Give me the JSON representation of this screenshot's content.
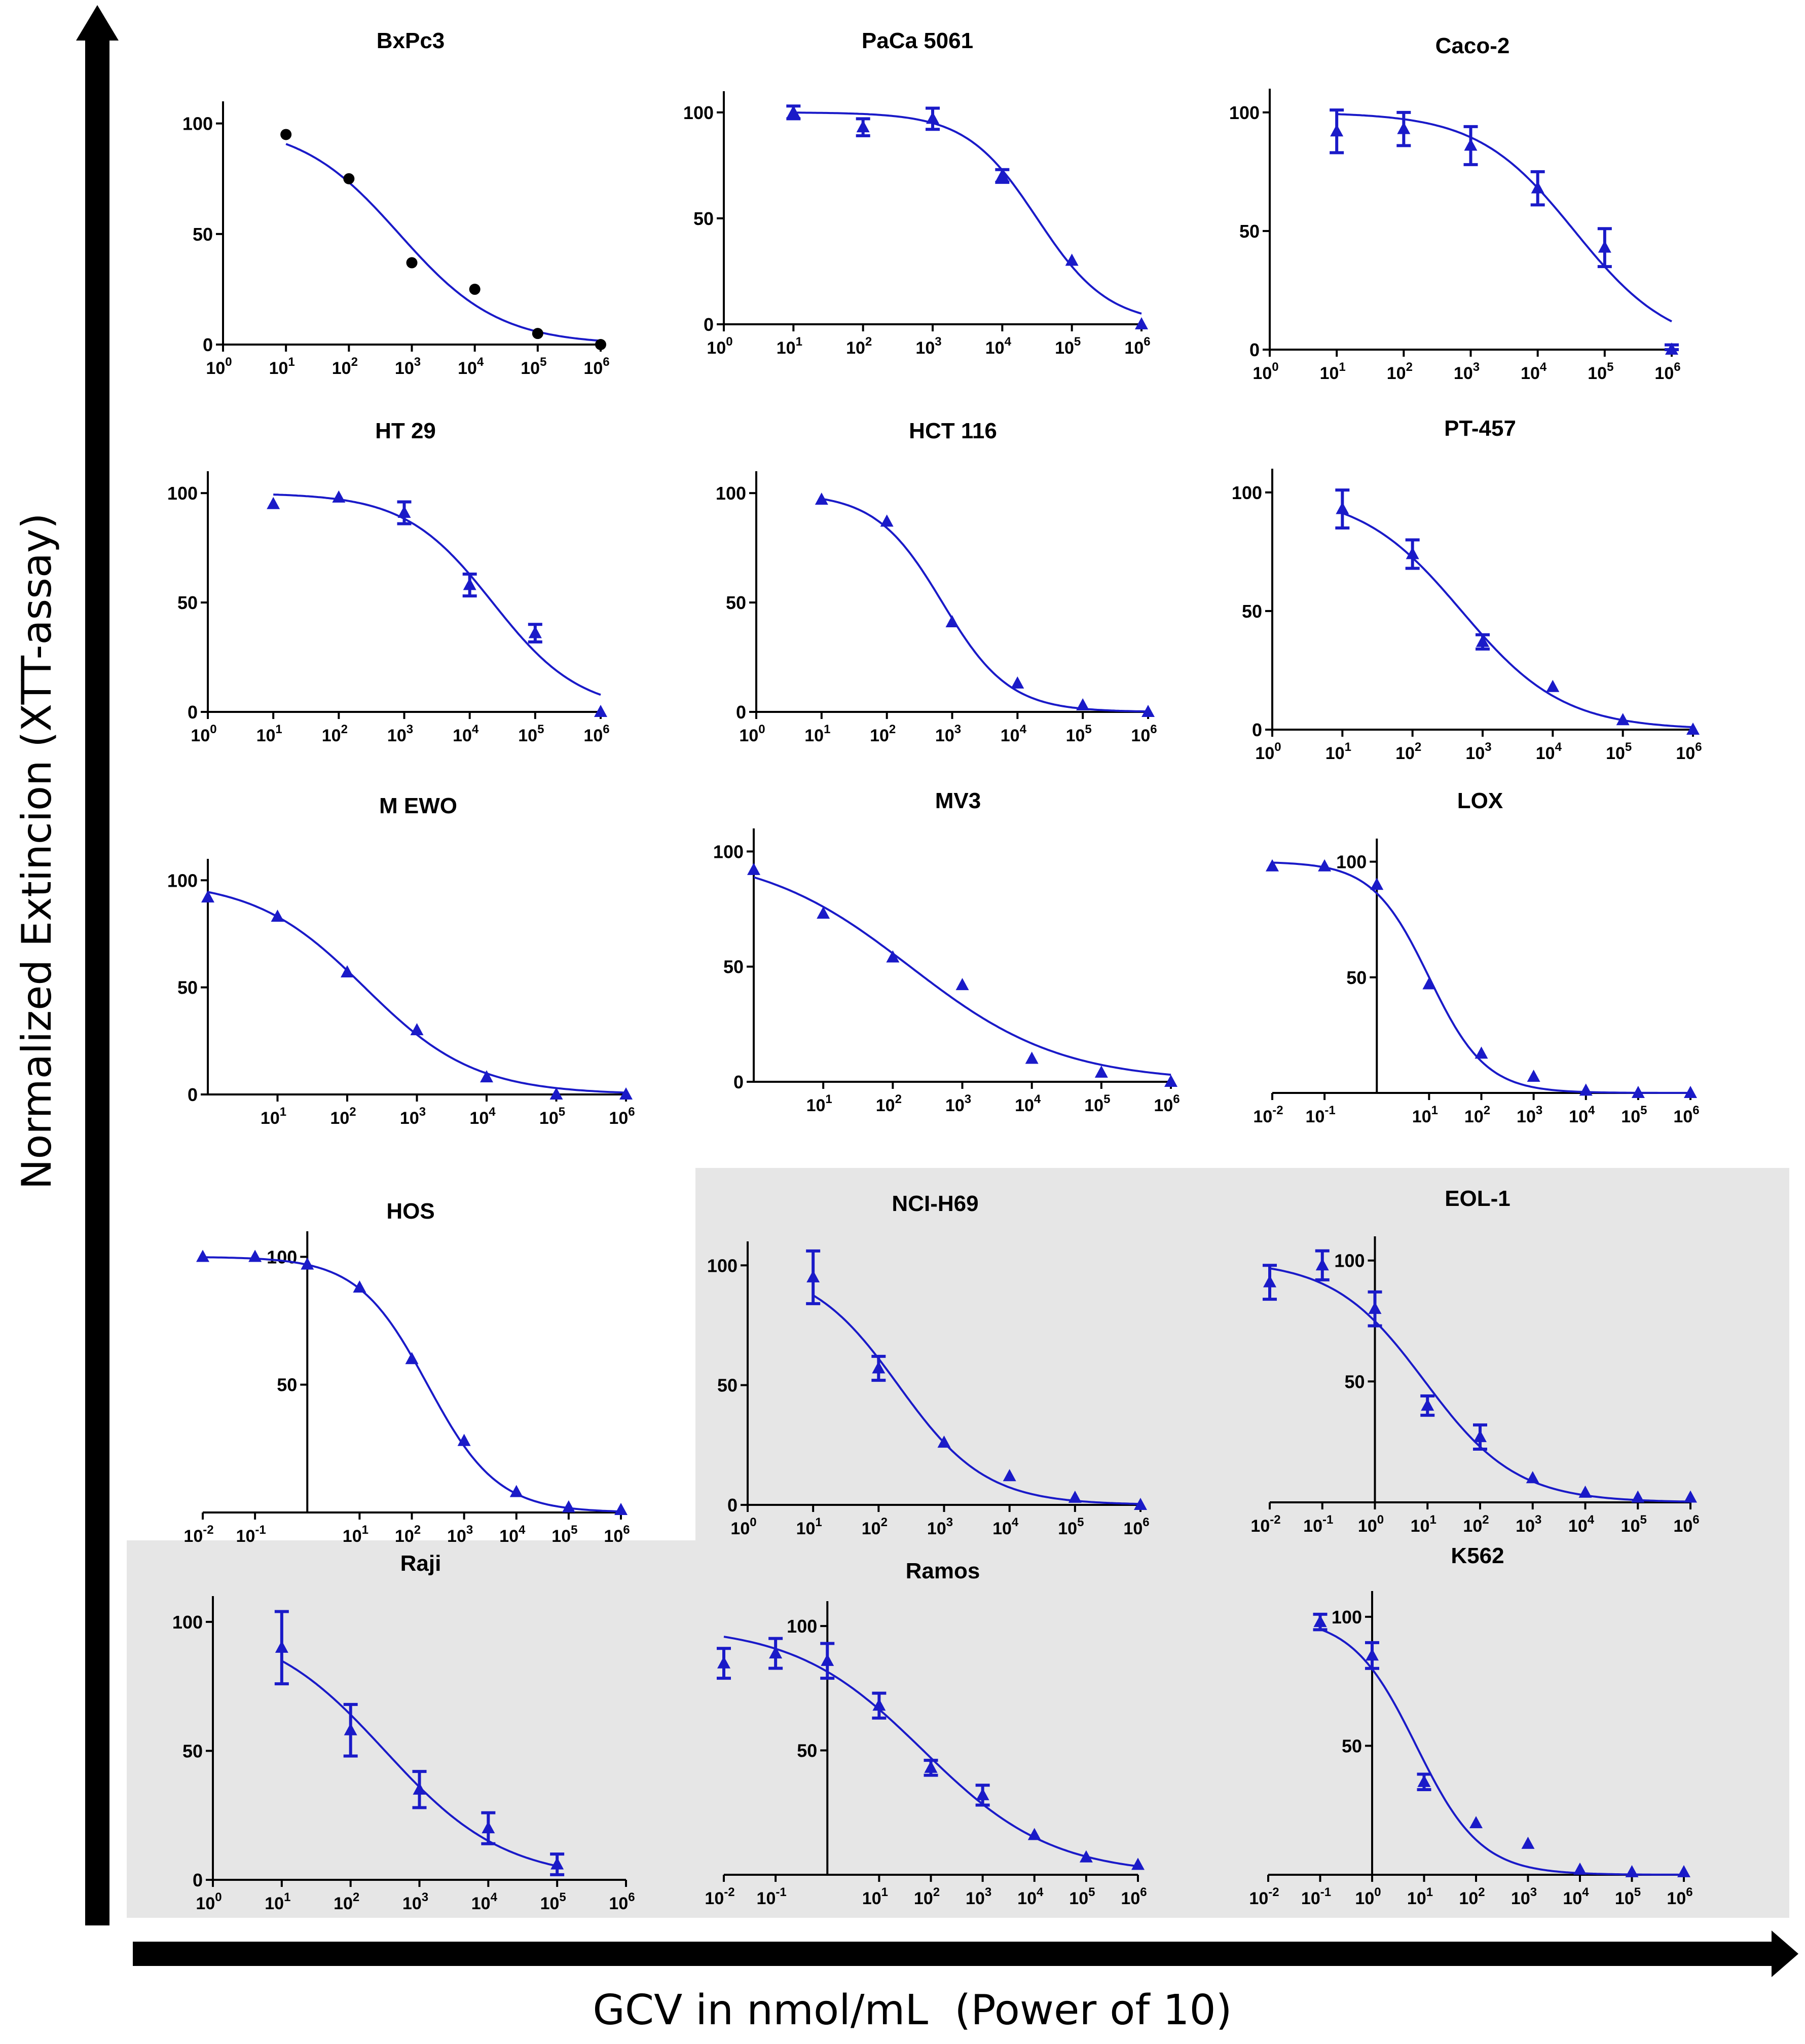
{
  "figure": {
    "ylabel": "Normalized Extincion (XTT-assay)",
    "xlabel": "GCV in nmol/mL  (Power of 10)",
    "colors": {
      "curve": "#1a1ac8",
      "black_marker": "#000000",
      "shade": "#e6e6e6",
      "arrow": "#000000"
    }
  },
  "chart_data": [
    {
      "type": "scatter",
      "title": "BxPc3",
      "marker": "circle",
      "color": "#000000",
      "x": [
        1,
        2,
        3,
        4,
        5,
        6
      ],
      "y": [
        95,
        75,
        37,
        25,
        5,
        0
      ],
      "x_tick_labels": [
        [
          "10",
          "0"
        ],
        [
          "10",
          "1"
        ],
        [
          "10",
          "2"
        ],
        [
          "10",
          "3"
        ],
        [
          "10",
          "4"
        ],
        [
          "10",
          "5"
        ],
        [
          "10",
          "6"
        ]
      ],
      "y_ticks": [
        0,
        50,
        100
      ],
      "y_tick_labels": [
        "0",
        "50",
        "100"
      ]
    },
    {
      "type": "scatter",
      "title": "PaCa 5061",
      "marker": "triangle",
      "color": "#1a1ac8",
      "x": [
        1,
        2,
        3,
        4,
        5,
        6
      ],
      "y": [
        100,
        93,
        97,
        70,
        30,
        0
      ],
      "err": [
        3,
        4,
        5,
        3,
        0,
        0
      ],
      "x_tick_labels": [
        [
          "10",
          "0"
        ],
        [
          "10",
          "1"
        ],
        [
          "10",
          "2"
        ],
        [
          "10",
          "3"
        ],
        [
          "10",
          "4"
        ],
        [
          "10",
          "5"
        ],
        [
          "10",
          "6"
        ]
      ],
      "y_ticks": [
        0,
        50,
        100
      ],
      "y_tick_labels": [
        "0",
        "50",
        "100"
      ]
    },
    {
      "type": "scatter",
      "title": "Caco-2",
      "marker": "triangle",
      "color": "#1a1ac8",
      "x": [
        1,
        2,
        3,
        4,
        5,
        6
      ],
      "y": [
        92,
        93,
        86,
        68,
        43,
        0
      ],
      "err": [
        9,
        7,
        8,
        7,
        8,
        2
      ],
      "x_tick_labels": [
        [
          "10",
          "0"
        ],
        [
          "10",
          "1"
        ],
        [
          "10",
          "2"
        ],
        [
          "10",
          "3"
        ],
        [
          "10",
          "4"
        ],
        [
          "10",
          "5"
        ],
        [
          "10",
          "6"
        ]
      ],
      "y_ticks": [
        0,
        50,
        100
      ],
      "y_tick_labels": [
        "0",
        "50",
        "100"
      ]
    },
    {
      "type": "scatter",
      "title": "HT 29",
      "marker": "triangle",
      "color": "#1a1ac8",
      "x": [
        1,
        2,
        3,
        4,
        5,
        6
      ],
      "y": [
        95,
        98,
        91,
        58,
        36,
        0
      ],
      "err": [
        0,
        0,
        5,
        5,
        4,
        0
      ],
      "x_tick_labels": [
        [
          "10",
          "0"
        ],
        [
          "10",
          "1"
        ],
        [
          "10",
          "2"
        ],
        [
          "10",
          "3"
        ],
        [
          "10",
          "4"
        ],
        [
          "10",
          "5"
        ],
        [
          "10",
          "6"
        ]
      ],
      "y_ticks": [
        0,
        50,
        100
      ],
      "y_tick_labels": [
        "0",
        "50",
        "100"
      ]
    },
    {
      "type": "scatter",
      "title": "HCT 116",
      "marker": "triangle",
      "color": "#1a1ac8",
      "x": [
        1,
        2,
        3,
        4,
        5,
        6
      ],
      "y": [
        97,
        87,
        41,
        13,
        3,
        0
      ],
      "x_tick_labels": [
        [
          "10",
          "0"
        ],
        [
          "10",
          "1"
        ],
        [
          "10",
          "2"
        ],
        [
          "10",
          "3"
        ],
        [
          "10",
          "4"
        ],
        [
          "10",
          "5"
        ],
        [
          "10",
          "6"
        ]
      ],
      "y_ticks": [
        0,
        50,
        100
      ],
      "y_tick_labels": [
        "0",
        "50",
        "100"
      ]
    },
    {
      "type": "scatter",
      "title": "PT-457",
      "marker": "triangle",
      "color": "#1a1ac8",
      "x": [
        1,
        2,
        3,
        4,
        5,
        6
      ],
      "y": [
        93,
        74,
        37,
        18,
        4,
        0
      ],
      "err": [
        8,
        6,
        3,
        0,
        0,
        0
      ],
      "x_tick_labels": [
        [
          "10",
          "0"
        ],
        [
          "10",
          "1"
        ],
        [
          "10",
          "2"
        ],
        [
          "10",
          "3"
        ],
        [
          "10",
          "4"
        ],
        [
          "10",
          "5"
        ],
        [
          "10",
          "6"
        ]
      ],
      "y_ticks": [
        0,
        50,
        100
      ],
      "y_tick_labels": [
        "0",
        "50",
        "100"
      ]
    },
    {
      "type": "scatter",
      "title": "M EWO",
      "marker": "triangle",
      "color": "#1a1ac8",
      "x": [
        0,
        1,
        2,
        3,
        4,
        5,
        6
      ],
      "y": [
        92,
        83,
        57,
        30,
        8,
        0,
        0
      ],
      "x_tick_labels": [
        [
          "10",
          "1"
        ],
        [
          "10",
          "2"
        ],
        [
          "10",
          "3"
        ],
        [
          "10",
          "4"
        ],
        [
          "10",
          "5"
        ],
        [
          "10",
          "6"
        ]
      ],
      "y_ticks": [
        0,
        50,
        100
      ],
      "y_tick_labels": [
        "0",
        "50",
        "100"
      ]
    },
    {
      "type": "scatter",
      "title": "MV3",
      "marker": "triangle",
      "color": "#1a1ac8",
      "x": [
        0,
        1,
        2,
        3,
        4,
        5,
        6
      ],
      "y": [
        92,
        73,
        54,
        42,
        10,
        4,
        0
      ],
      "x_tick_labels": [
        [
          "10",
          "1"
        ],
        [
          "10",
          "2"
        ],
        [
          "10",
          "3"
        ],
        [
          "10",
          "4"
        ],
        [
          "10",
          "5"
        ],
        [
          "10",
          "6"
        ]
      ],
      "y_ticks": [
        0,
        50,
        100
      ],
      "y_tick_labels": [
        "0",
        "50",
        "100"
      ]
    },
    {
      "type": "scatter",
      "title": "LOX",
      "marker": "triangle",
      "color": "#1a1ac8",
      "x": [
        -2,
        -1,
        0,
        1,
        2,
        3,
        4,
        5,
        6
      ],
      "y": [
        98,
        98,
        90,
        47,
        17,
        7,
        1,
        0,
        0
      ],
      "x_tick_labels": [
        [
          "10",
          "-2"
        ],
        [
          "10",
          "-1"
        ],
        [
          "10",
          "1"
        ],
        [
          "10",
          "2"
        ],
        [
          "10",
          "3"
        ],
        [
          "10",
          "4"
        ],
        [
          "10",
          "5"
        ],
        [
          "10",
          "6"
        ]
      ],
      "y_ticks": [
        50,
        100
      ],
      "y_tick_labels": [
        "50",
        "100"
      ]
    },
    {
      "type": "scatter",
      "title": "HOS",
      "marker": "triangle",
      "color": "#1a1ac8",
      "x": [
        -2,
        -1,
        0,
        1,
        2,
        3,
        4,
        5,
        6
      ],
      "y": [
        100,
        100,
        97,
        88,
        60,
        28,
        8,
        2,
        1
      ],
      "x_tick_labels": [
        [
          "10",
          "-2"
        ],
        [
          "10",
          "-1"
        ],
        [
          "10",
          "1"
        ],
        [
          "10",
          "2"
        ],
        [
          "10",
          "3"
        ],
        [
          "10",
          "4"
        ],
        [
          "10",
          "5"
        ],
        [
          "10",
          "6"
        ]
      ],
      "y_ticks": [
        50,
        100
      ],
      "y_tick_labels": [
        "50",
        "100"
      ]
    },
    {
      "type": "scatter",
      "title": "NCI-H69",
      "marker": "triangle",
      "color": "#1a1ac8",
      "x": [
        1,
        2,
        3,
        4,
        5,
        6
      ],
      "y": [
        95,
        57,
        26,
        12,
        3,
        0
      ],
      "err": [
        11,
        5,
        0,
        0,
        0,
        0
      ],
      "x_tick_labels": [
        [
          "10",
          "0"
        ],
        [
          "10",
          "1"
        ],
        [
          "10",
          "2"
        ],
        [
          "10",
          "3"
        ],
        [
          "10",
          "4"
        ],
        [
          "10",
          "5"
        ],
        [
          "10",
          "6"
        ]
      ],
      "y_ticks": [
        0,
        50,
        100
      ],
      "y_tick_labels": [
        "0",
        "50",
        "100"
      ]
    },
    {
      "type": "scatter",
      "title": "EOL-1",
      "marker": "triangle",
      "color": "#1a1ac8",
      "x": [
        -2,
        -1,
        0,
        1,
        2,
        3,
        4,
        5,
        6
      ],
      "y": [
        91,
        98,
        80,
        40,
        27,
        10,
        4,
        2,
        2
      ],
      "err": [
        7,
        6,
        7,
        4,
        5,
        0,
        0,
        0,
        0
      ],
      "x_tick_labels": [
        [
          "10",
          "-2"
        ],
        [
          "10",
          "-1"
        ],
        [
          "10",
          "0"
        ],
        [
          "10",
          "1"
        ],
        [
          "10",
          "2"
        ],
        [
          "10",
          "3"
        ],
        [
          "10",
          "4"
        ],
        [
          "10",
          "5"
        ],
        [
          "10",
          "6"
        ]
      ],
      "y_ticks": [
        50,
        100
      ],
      "y_tick_labels": [
        "50",
        "100"
      ]
    },
    {
      "type": "scatter",
      "title": "Raji",
      "marker": "triangle",
      "color": "#1a1ac8",
      "x": [
        1,
        2,
        3,
        4,
        5
      ],
      "y": [
        90,
        58,
        35,
        20,
        6
      ],
      "err": [
        14,
        10,
        7,
        6,
        4
      ],
      "x_tick_labels": [
        [
          "10",
          "0"
        ],
        [
          "10",
          "1"
        ],
        [
          "10",
          "2"
        ],
        [
          "10",
          "3"
        ],
        [
          "10",
          "4"
        ],
        [
          "10",
          "5"
        ],
        [
          "10",
          "6"
        ]
      ],
      "y_ticks": [
        0,
        50,
        100
      ],
      "y_tick_labels": [
        "0",
        "50",
        "100"
      ]
    },
    {
      "type": "scatter",
      "title": "Ramos",
      "marker": "triangle",
      "color": "#1a1ac8",
      "x": [
        -2,
        -1,
        0,
        1,
        2,
        3,
        4,
        5,
        6
      ],
      "y": [
        85,
        89,
        86,
        68,
        43,
        32,
        16,
        7,
        4
      ],
      "err": [
        6,
        6,
        7,
        5,
        3,
        4,
        0,
        0,
        0
      ],
      "x_tick_labels": [
        [
          "10",
          "-2"
        ],
        [
          "10",
          "-1"
        ],
        [
          "10",
          "1"
        ],
        [
          "10",
          "2"
        ],
        [
          "10",
          "3"
        ],
        [
          "10",
          "4"
        ],
        [
          "10",
          "5"
        ],
        [
          "10",
          "6"
        ]
      ],
      "y_ticks": [
        50,
        100
      ],
      "y_tick_labels": [
        "50",
        "100"
      ]
    },
    {
      "type": "scatter",
      "title": "K562",
      "marker": "triangle",
      "color": "#1a1ac8",
      "x": [
        -1,
        0,
        1,
        2,
        3,
        4,
        5,
        6
      ],
      "y": [
        98,
        85,
        36,
        20,
        12,
        2,
        1,
        1
      ],
      "err": [
        3,
        5,
        3,
        0,
        0,
        0,
        0,
        0
      ],
      "x_tick_labels": [
        [
          "10",
          "-2"
        ],
        [
          "10",
          "-1"
        ],
        [
          "10",
          "0"
        ],
        [
          "10",
          "1"
        ],
        [
          "10",
          "2"
        ],
        [
          "10",
          "3"
        ],
        [
          "10",
          "4"
        ],
        [
          "10",
          "5"
        ],
        [
          "10",
          "6"
        ]
      ],
      "y_ticks": [
        50,
        100
      ],
      "y_tick_labels": [
        "50",
        "100"
      ]
    }
  ]
}
